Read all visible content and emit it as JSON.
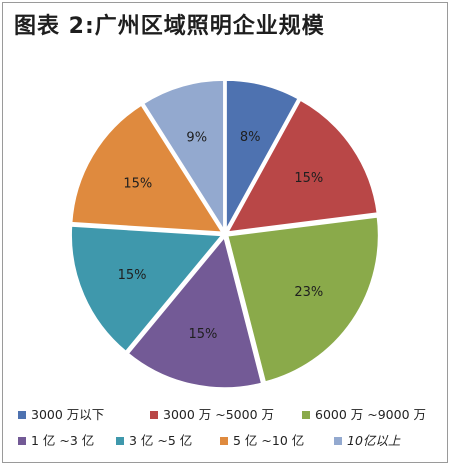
{
  "title": "图表 2:广州区域照明企业规模",
  "chart_data": {
    "type": "pie",
    "title": "图表 2:广州区域照明企业规模",
    "start_angle_deg": 0,
    "direction": "clockwise",
    "slices": [
      {
        "name": "3000 万以下",
        "value": 8,
        "label": "8%",
        "color": "#4e72b0"
      },
      {
        "name": "3000 万 ~5000 万",
        "value": 15,
        "label": "15%",
        "color": "#b94747"
      },
      {
        "name": "6000 万 ~9000 万",
        "value": 23,
        "label": "23%",
        "color": "#8aaa4a"
      },
      {
        "name": "1 亿 ~3 亿",
        "value": 15,
        "label": "15%",
        "color": "#735a96"
      },
      {
        "name": "3 亿 ~5 亿",
        "value": 15,
        "label": "15%",
        "color": "#3f98ac"
      },
      {
        "name": "5 亿 ~10 亿",
        "value": 15,
        "label": "15%",
        "color": "#df8a3e"
      },
      {
        "name": "10亿以上",
        "value": 9,
        "label": "9%",
        "color": "#93a9cf"
      }
    ],
    "legend": {
      "placement": "bottom",
      "entries": [
        "3000 万以下",
        "3000 万 ~5000 万",
        "6000 万 ~9000 万",
        "1 亿 ~3 亿",
        "3 亿 ~5 亿",
        "5 亿 ~10 亿",
        "10亿以上"
      ]
    }
  }
}
